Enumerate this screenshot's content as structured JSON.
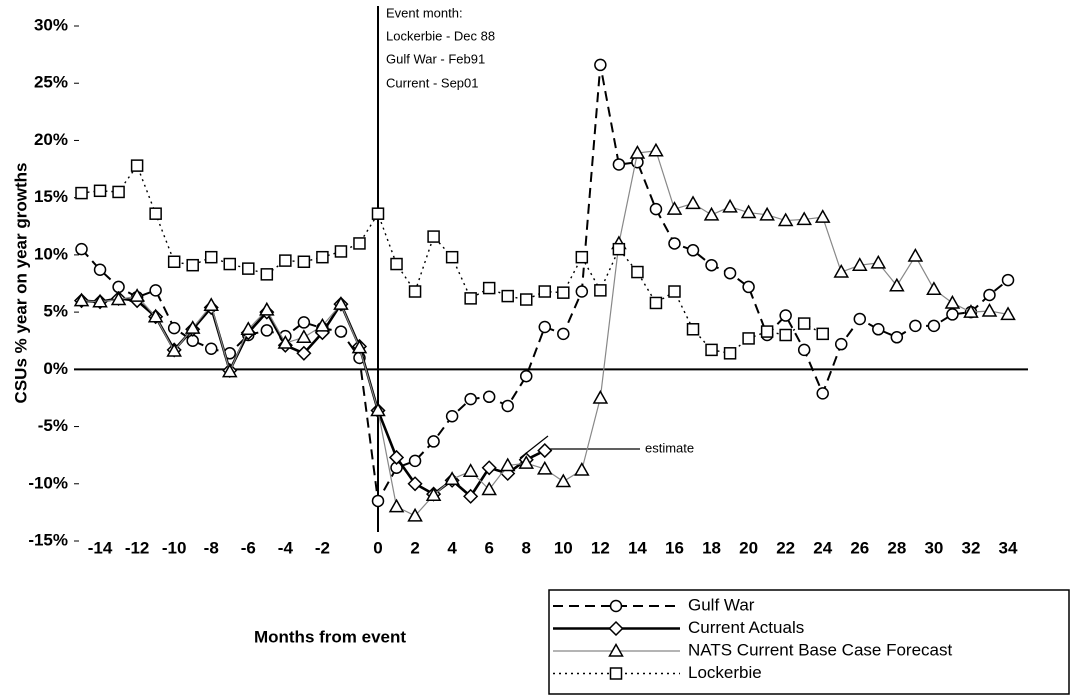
{
  "chart_data": {
    "type": "line",
    "y_label": "CSUs % year on year growths",
    "x_label": "Months from event",
    "annotations": [
      "Event month:",
      "Lockerbie - Dec 88",
      "Gulf War - Feb91",
      "Current - Sep01"
    ],
    "estimate_label": "estimate",
    "categories": [
      null,
      "-14",
      null,
      "-12",
      null,
      "-10",
      null,
      "-8",
      null,
      "-6",
      null,
      "-4",
      null,
      "-2",
      null,
      null,
      "0",
      null,
      "2",
      null,
      "4",
      null,
      "6",
      null,
      "8",
      null,
      "10",
      null,
      "12",
      null,
      "14",
      null,
      "16",
      null,
      "18",
      null,
      "20",
      null,
      "22",
      null,
      "24",
      null,
      "26",
      null,
      "28",
      null,
      "30",
      null,
      "32",
      null,
      "34"
    ],
    "ylim": [
      -15,
      30
    ],
    "yticks": [
      {
        "value": -15,
        "label": "-15%"
      },
      {
        "value": -10,
        "label": "-10%"
      },
      {
        "value": -5,
        "label": "-5%"
      },
      {
        "value": 0,
        "label": "0%"
      },
      {
        "value": 5,
        "label": "5%"
      },
      {
        "value": 10,
        "label": "10%"
      },
      {
        "value": 15,
        "label": "15%"
      },
      {
        "value": 20,
        "label": "20%"
      },
      {
        "value": 25,
        "label": "25%"
      },
      {
        "value": 30,
        "label": "30%"
      }
    ],
    "series": [
      {
        "name": "Gulf War",
        "color": "#000000",
        "line_style": "dashed",
        "marker": "circle",
        "values": [
          10.5,
          8.7,
          7.2,
          6.3,
          6.9,
          3.6,
          2.5,
          1.8,
          1.4,
          3.0,
          3.4,
          2.9,
          4.1,
          3.6,
          3.3,
          1.0,
          -11.5,
          -8.6,
          -8.0,
          -6.3,
          -4.1,
          -2.6,
          -2.4,
          -3.2,
          -0.6,
          3.7,
          3.1,
          6.8,
          26.6,
          17.9,
          18.1,
          14.0,
          11.0,
          10.4,
          9.1,
          8.4,
          7.2,
          3.0,
          4.7,
          1.7,
          -2.1,
          2.2,
          4.4,
          3.5,
          2.8,
          3.8,
          3.8,
          4.8,
          5.0,
          6.5,
          7.8
        ]
      },
      {
        "name": "Current Actuals",
        "color": "#000000",
        "line_style": "solid",
        "marker": "diamond",
        "values": [
          6.0,
          5.9,
          6.2,
          6.0,
          4.6,
          1.7,
          3.5,
          5.4,
          -0.1,
          3.2,
          5.0,
          2.1,
          1.4,
          3.2,
          5.7,
          2.0,
          -3.6,
          -7.7,
          -10.0,
          -10.9,
          -9.7,
          -11.1,
          -8.6,
          -9.1,
          -7.9,
          -7.1,
          null,
          null,
          null,
          null,
          null,
          null,
          null,
          null,
          null,
          null,
          null,
          null,
          null,
          null,
          null,
          null,
          null,
          null,
          null,
          null,
          null,
          null,
          null,
          null,
          null
        ]
      },
      {
        "name": "NATS Current Base Case Forecast",
        "color": "#888888",
        "line_style": "thin",
        "marker": "triangle",
        "values": [
          6.0,
          5.9,
          6.1,
          6.4,
          4.6,
          1.6,
          3.6,
          5.6,
          -0.2,
          3.5,
          5.2,
          2.3,
          2.8,
          3.8,
          5.7,
          1.9,
          -3.6,
          -12.0,
          -12.8,
          -11.0,
          -9.6,
          -8.9,
          -10.5,
          -8.4,
          -8.2,
          -8.7,
          -9.8,
          -8.8,
          -2.5,
          11.0,
          18.9,
          19.1,
          14.0,
          14.5,
          13.5,
          14.2,
          13.7,
          13.5,
          13.0,
          13.1,
          13.3,
          8.5,
          9.1,
          9.3,
          7.3,
          9.9,
          7.0,
          5.8,
          5.0,
          5.1,
          4.8
        ]
      },
      {
        "name": "Lockerbie",
        "color": "#000000",
        "line_style": "dotted",
        "marker": "square",
        "values": [
          15.4,
          15.6,
          15.5,
          17.8,
          13.6,
          9.4,
          9.1,
          9.8,
          9.2,
          8.8,
          8.3,
          9.5,
          9.4,
          9.8,
          10.3,
          11.0,
          13.6,
          9.2,
          6.8,
          11.6,
          9.8,
          6.2,
          7.1,
          6.4,
          6.1,
          6.8,
          6.7,
          9.8,
          6.9,
          10.5,
          8.5,
          5.8,
          6.8,
          3.5,
          1.7,
          1.4,
          2.7,
          3.3,
          3.0,
          4.0,
          3.1,
          null,
          null,
          null,
          null,
          null,
          null,
          null,
          null,
          null,
          null
        ]
      }
    ]
  }
}
